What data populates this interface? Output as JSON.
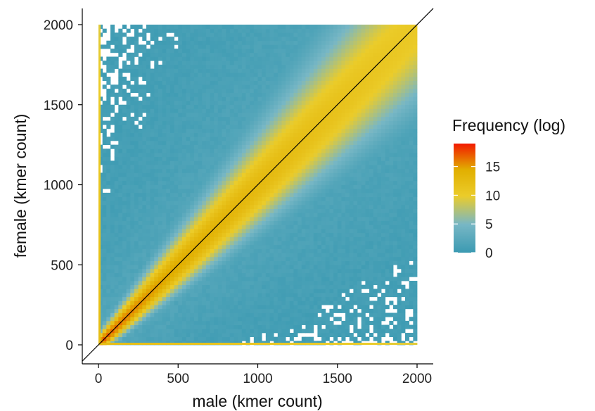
{
  "chart_data": {
    "type": "heatmap",
    "xlabel": "male (kmer count)",
    "ylabel": "female (kmer count)",
    "xlim": [
      0,
      2000
    ],
    "ylim": [
      0,
      2000
    ],
    "x_ticks": [
      0,
      500,
      1000,
      1500,
      2000
    ],
    "y_ticks": [
      0,
      500,
      1000,
      1500,
      2000
    ],
    "x_tick_labels": [
      "0",
      "500",
      "1000",
      "1500",
      "2000"
    ],
    "y_tick_labels": [
      "0",
      "500",
      "1000",
      "1500",
      "2000"
    ],
    "reference_line": {
      "slope": 1,
      "intercept": 0
    },
    "density_description": "log frequency peaks along the diagonal y = x, highest near the origin (~18) and decreasing along the diagonal (~10 near 2000); sparse low-frequency scatter off-diagonal; strong frequency along both axes near 0",
    "samples": [
      {
        "x": 50,
        "y": 50,
        "value": 18
      },
      {
        "x": 100,
        "y": 100,
        "value": 17
      },
      {
        "x": 250,
        "y": 250,
        "value": 15
      },
      {
        "x": 500,
        "y": 500,
        "value": 13
      },
      {
        "x": 1000,
        "y": 1000,
        "value": 11.5
      },
      {
        "x": 1500,
        "y": 1500,
        "value": 10.5
      },
      {
        "x": 2000,
        "y": 2000,
        "value": 9.5
      },
      {
        "x": 500,
        "y": 1500,
        "value": 1
      },
      {
        "x": 1500,
        "y": 500,
        "value": 1
      },
      {
        "x": 0,
        "y": 1000,
        "value": 10
      },
      {
        "x": 1000,
        "y": 0,
        "value": 10
      }
    ],
    "legend": {
      "title": "Frequency (log)",
      "placement": "right",
      "range": [
        0,
        19
      ],
      "ticks": [
        0,
        5,
        10,
        15
      ],
      "tick_labels": [
        "0",
        "5",
        "10",
        "15"
      ],
      "colors": [
        "#3b9ab2",
        "#78b7c5",
        "#ebcc2a",
        "#e1af00",
        "#f21a00"
      ]
    },
    "grid": false
  }
}
